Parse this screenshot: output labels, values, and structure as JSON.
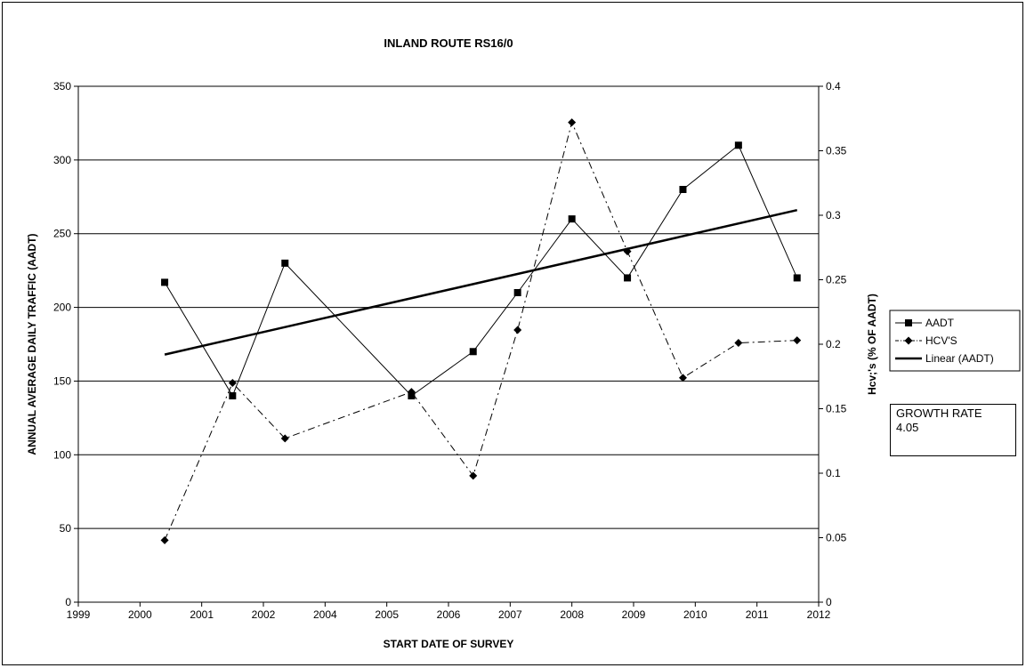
{
  "chart_data": {
    "type": "line",
    "title": "INLAND ROUTE RS16/0",
    "xlabel": "START DATE OF SURVEY",
    "ylabel": "ANNUAL AVERAGE DAILY TRAFFIC (AADT)",
    "y2label": "Hcv;'s (% OF AADT)",
    "x_tick_labels": [
      "1999",
      "2000",
      "2001",
      "2002",
      "2004",
      "2005",
      "2006",
      "2007",
      "2008",
      "2009",
      "2010",
      "2011",
      "2012"
    ],
    "xlim": [
      0,
      12
    ],
    "ylim": [
      0,
      350
    ],
    "y_ticks": [
      0,
      50,
      100,
      150,
      200,
      250,
      300,
      350
    ],
    "y2lim": [
      0,
      0.4
    ],
    "y2_ticks": [
      "0",
      "0.05",
      "0.1",
      "0.15",
      "0.2",
      "0.25",
      "0.3",
      "0.35",
      "0.4"
    ],
    "grid": "horizontal",
    "legend_position": "right",
    "series": [
      {
        "name": "AADT",
        "axis": "left",
        "marker": "square",
        "line": "solid",
        "x": [
          1.4,
          2.5,
          3.35,
          5.4,
          6.4,
          7.12,
          8.0,
          8.9,
          9.8,
          10.7,
          11.65
        ],
        "values": [
          217,
          140,
          230,
          140,
          170,
          210,
          260,
          220,
          280,
          310,
          220
        ]
      },
      {
        "name": "HCV'S",
        "axis": "right",
        "marker": "diamond",
        "line": "dash-dot",
        "x": [
          1.4,
          2.5,
          3.35,
          5.4,
          6.4,
          7.12,
          8.0,
          8.9,
          9.8,
          10.7,
          11.65
        ],
        "values": [
          0.048,
          0.17,
          0.127,
          0.163,
          0.098,
          0.211,
          0.372,
          0.272,
          0.174,
          0.201,
          0.203
        ]
      },
      {
        "name": "Linear (AADT)",
        "axis": "left",
        "marker": "none",
        "line": "solid-thick",
        "x": [
          1.4,
          11.65
        ],
        "values": [
          168,
          266
        ]
      }
    ]
  },
  "annotation": {
    "line1": "GROWTH RATE",
    "line2": "4.05"
  }
}
